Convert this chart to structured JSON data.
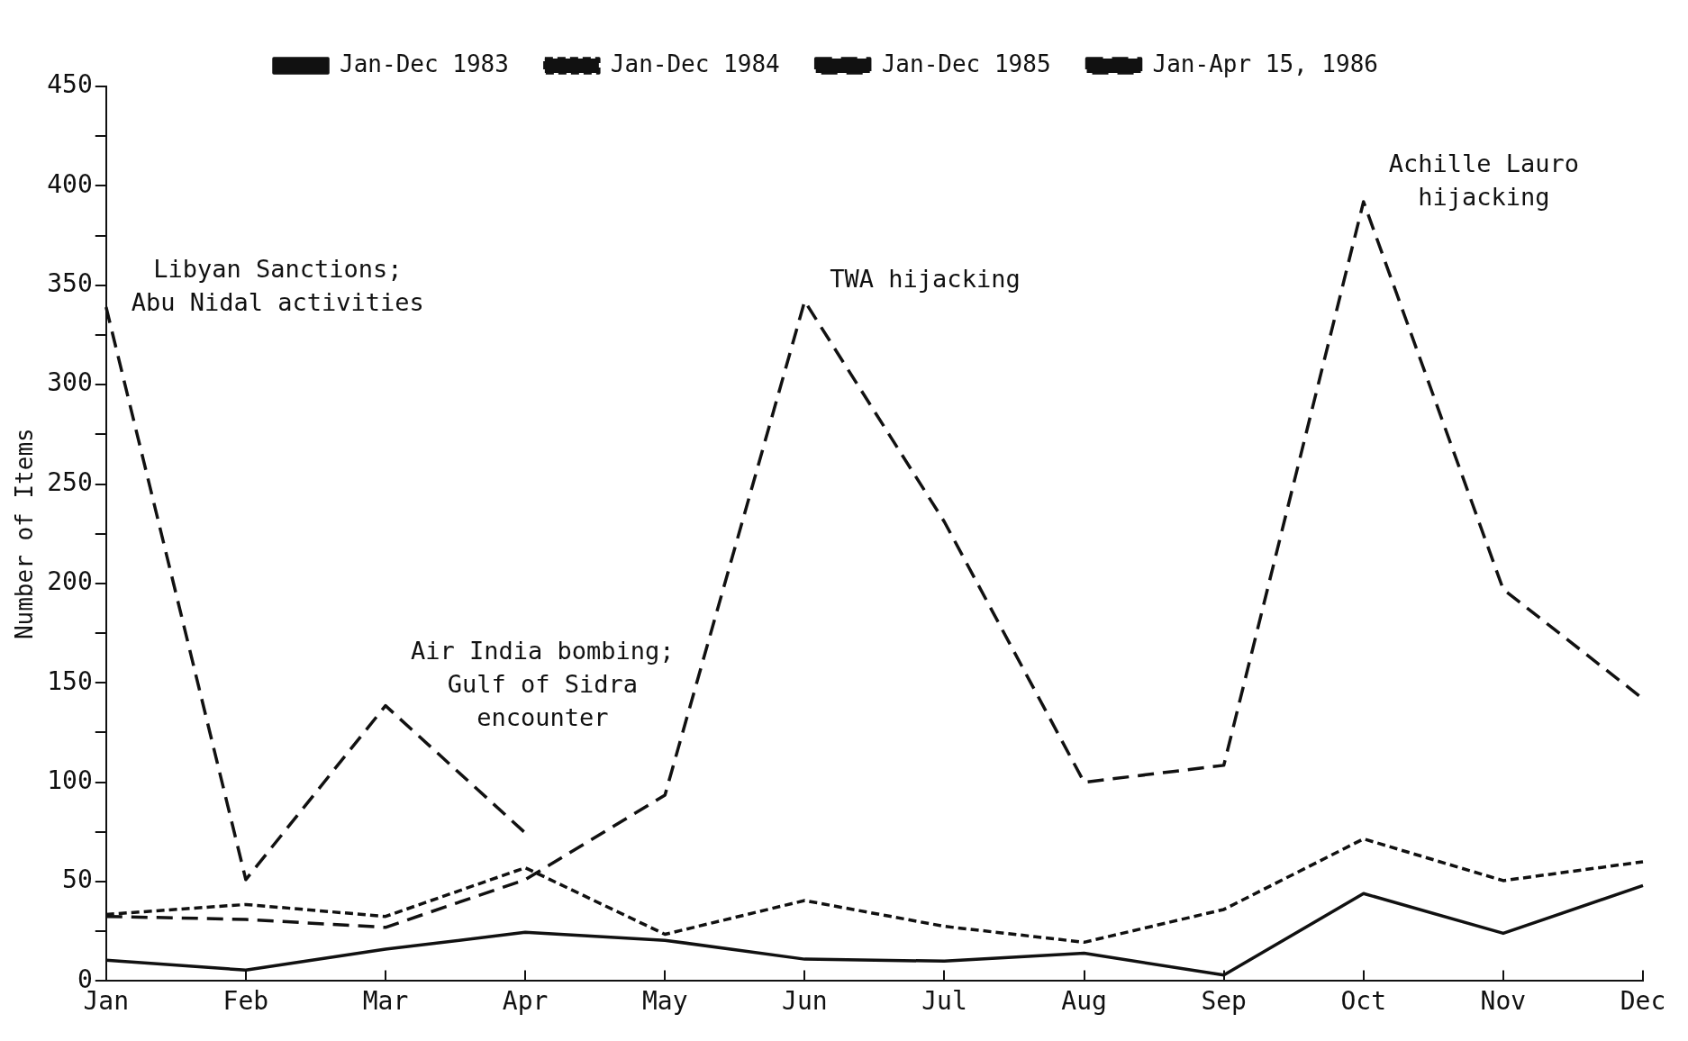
{
  "chart_data": {
    "type": "line",
    "ylabel": "Number of Items",
    "categories": [
      "Jan",
      "Feb",
      "Mar",
      "Apr",
      "May",
      "Jun",
      "Jul",
      "Aug",
      "Sep",
      "Oct",
      "Nov",
      "Dec"
    ],
    "series": [
      {
        "name": "Jan-Dec 1983",
        "color": "#111111",
        "line_style": "solid",
        "values": [
          10.5,
          5.5,
          16,
          24.5,
          20.5,
          11,
          10,
          14,
          3,
          44,
          24,
          48
        ]
      },
      {
        "name": "Jan-Dec 1984",
        "color": "#111111",
        "line_style": "dotted",
        "values": [
          33.5,
          38.5,
          32.5,
          57,
          23.5,
          40.5,
          27.5,
          19.5,
          36,
          71.5,
          50.5,
          60
        ]
      },
      {
        "name": "Jan-Dec 1985",
        "color": "#111111",
        "line_style": "dashed",
        "values": [
          32.5,
          31,
          27,
          51,
          93.5,
          342,
          231,
          100,
          108.5,
          392,
          197,
          142
        ]
      },
      {
        "name": "Jan-Apr 15, 1986",
        "color": "#111111",
        "line_style": "dashed",
        "values": [
          339,
          51,
          138.5,
          74.5,
          null,
          null,
          null,
          null,
          null,
          null,
          null,
          null
        ]
      }
    ],
    "ylim": [
      0,
      450
    ],
    "yticks": [
      0,
      {
        "value": 25,
        "label": null
      },
      50,
      {
        "value": 75,
        "label": null
      },
      100,
      {
        "value": 125,
        "label": null
      },
      150,
      {
        "value": 175,
        "label": null
      },
      200,
      {
        "value": 225,
        "label": null
      },
      250,
      {
        "value": 275,
        "label": null
      },
      300,
      {
        "value": 325,
        "label": null
      },
      350,
      {
        "value": 375,
        "label": null
      },
      400,
      {
        "value": 425,
        "label": null
      },
      450
    ],
    "marker": "none",
    "legend": "top",
    "annotations": [
      {
        "text": "Libyan Sanctions;\nAbu Nidal activities",
        "x": "Jan",
        "y": 339
      },
      {
        "text": "Air India bombing;\nGulf of Sidra\nencounter",
        "x": "Mar",
        "y": 138.5
      },
      {
        "text": "TWA hijacking",
        "x": "Jun",
        "y": 342
      },
      {
        "text": "Achille Lauro\nhijacking",
        "x": "Oct",
        "y": 392
      }
    ]
  }
}
